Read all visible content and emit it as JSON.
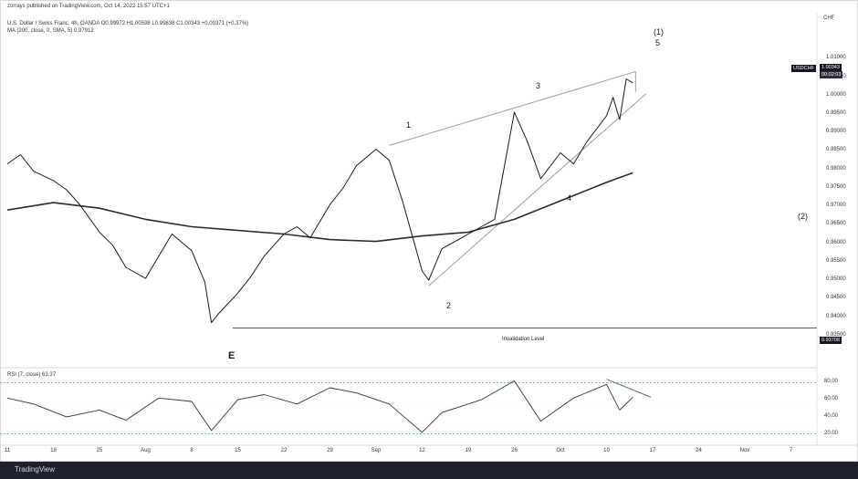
{
  "header": {
    "published": "zorrays published on TradingView.com, Oct 14, 2022 15:57 UTC+1",
    "ohlc": "U.S. Dollar / Swiss Franc, 4h, OANDA  O0.99972  H1.00598  L0.99838  C1.00343  +0.00371 (+0.37%)",
    "ma": "MA (200, close, 0, SMA, 5)  0.97912"
  },
  "currency": "CHF",
  "rsi_header": "RSI (7, close)  63.37",
  "footer_brand": "TradingView",
  "price_badge": {
    "symbol": "USDCHF",
    "price": "1.00343",
    "countdown": "00:02:03"
  },
  "invalidation_badge": "0.93708",
  "invalidation_label": "Invalidation Level",
  "wave_labels": {
    "one": "1",
    "two": "2",
    "three": "3",
    "four": "4",
    "five": "5",
    "paren_one": "(1)",
    "paren_two": "(2)",
    "e": "E"
  },
  "colors": {
    "price": "#1a1a1a",
    "ma": "#2b2b2b",
    "trendline": "#9e9e9e",
    "rsi_band": "#4aa3df",
    "badge_dark": "#131722"
  },
  "chart_data": [
    {
      "type": "line",
      "title": "USDCHF 4h",
      "x_labels": [
        "11",
        "18",
        "25",
        "Aug",
        "8",
        "15",
        "22",
        "29",
        "Sep",
        "12",
        "19",
        "26",
        "Oct",
        "10",
        "17",
        "24",
        "Nov",
        "7"
      ],
      "y_ticks": [
        "1.01000",
        "1.00500",
        "1.00000",
        "0.99500",
        "0.99000",
        "0.98500",
        "0.98000",
        "0.97500",
        "0.97000",
        "0.96500",
        "0.96000",
        "0.95500",
        "0.95000",
        "0.94500",
        "0.94000",
        "0.93500"
      ],
      "ylim": [
        0.932,
        1.016
      ],
      "series": [
        {
          "name": "Price",
          "x": [
            "Jul 11",
            "Jul 13",
            "Jul 15",
            "Jul 18",
            "Jul 20",
            "Jul 22",
            "Jul 25",
            "Jul 27",
            "Jul 29",
            "Aug 1",
            "Aug 3",
            "Aug 5",
            "Aug 8",
            "Aug 10",
            "Aug 11",
            "Aug 12",
            "Aug 15",
            "Aug 17",
            "Aug 19",
            "Aug 22",
            "Aug 24",
            "Aug 26",
            "Aug 29",
            "Aug 31",
            "Sep 2",
            "Sep 5",
            "Sep 7",
            "Sep 9",
            "Sep 12",
            "Sep 13",
            "Sep 15",
            "Sep 19",
            "Sep 21",
            "Sep 23",
            "Sep 26",
            "Sep 28",
            "Sep 30",
            "Oct 3",
            "Oct 5",
            "Oct 7",
            "Oct 10",
            "Oct 11",
            "Oct 12",
            "Oct 13",
            "Oct 14"
          ],
          "y": [
            0.9815,
            0.984,
            0.9795,
            0.977,
            0.9745,
            0.9705,
            0.963,
            0.9595,
            0.9535,
            0.9505,
            0.9565,
            0.9625,
            0.958,
            0.9495,
            0.9385,
            0.9408,
            0.9465,
            0.951,
            0.9565,
            0.9625,
            0.9645,
            0.9615,
            0.9705,
            0.975,
            0.981,
            0.9855,
            0.9825,
            0.9715,
            0.9525,
            0.95,
            0.9585,
            0.9625,
            0.9645,
            0.9665,
            0.9955,
            0.9875,
            0.9775,
            0.9845,
            0.9815,
            0.9875,
            0.9945,
            0.9995,
            0.9935,
            1.0045,
            1.0034
          ]
        },
        {
          "name": "MA 200",
          "x": [
            "Jul 11",
            "Jul 18",
            "Jul 25",
            "Aug 1",
            "Aug 8",
            "Aug 15",
            "Aug 22",
            "Aug 29",
            "Sep 5",
            "Sep 12",
            "Sep 19",
            "Sep 26",
            "Oct 3",
            "Oct 10",
            "Oct 14"
          ],
          "y": [
            0.969,
            0.971,
            0.9695,
            0.9665,
            0.9645,
            0.9635,
            0.9625,
            0.961,
            0.9605,
            0.962,
            0.963,
            0.9665,
            0.9715,
            0.9765,
            0.9791
          ]
        }
      ]
    },
    {
      "type": "line",
      "title": "RSI (7, close)",
      "y_ticks": [
        "80.00",
        "60.00",
        "40.00",
        "20.00"
      ],
      "ylim": [
        10,
        90
      ],
      "bands": [
        80,
        20
      ],
      "series": [
        {
          "name": "RSI",
          "x": [
            "Jul 11",
            "Jul 15",
            "Jul 20",
            "Jul 25",
            "Jul 29",
            "Aug 3",
            "Aug 8",
            "Aug 11",
            "Aug 15",
            "Aug 19",
            "Aug 24",
            "Aug 29",
            "Sep 2",
            "Sep 7",
            "Sep 12",
            "Sep 15",
            "Sep 21",
            "Sep 26",
            "Sep 30",
            "Oct 5",
            "Oct 10",
            "Oct 12",
            "Oct 14"
          ],
          "y": [
            62,
            55,
            40,
            48,
            36,
            62,
            58,
            24,
            60,
            66,
            55,
            74,
            68,
            55,
            22,
            45,
            60,
            82,
            35,
            62,
            78,
            48,
            63
          ]
        }
      ]
    }
  ]
}
